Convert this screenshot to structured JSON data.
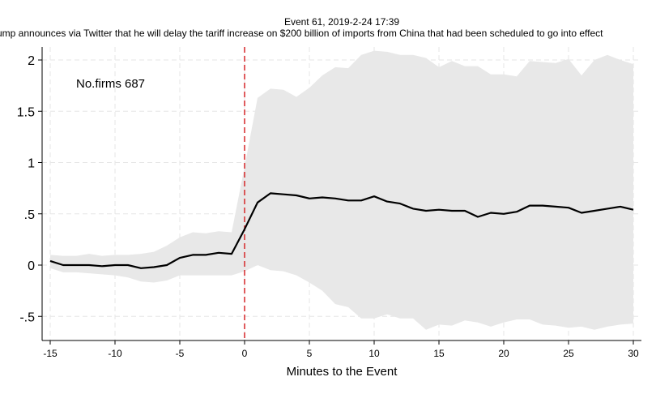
{
  "chart_data": {
    "type": "line",
    "title": "Event 61, 2019-2-24 17:39",
    "subtitle": "ump announces via Twitter that he will delay the tariff increase on $200 billion of imports from China that had been scheduled to go into effect",
    "xlabel": "Minutes to the Event",
    "ylabel": "",
    "annotation": "No.firms 687",
    "xlim": [
      -15,
      30
    ],
    "ylim": [
      -0.75,
      2.1
    ],
    "x_ticks": [
      -15,
      -10,
      -5,
      0,
      5,
      10,
      15,
      20,
      25,
      30
    ],
    "x_tick_labels": [
      "-15",
      "-10",
      "-5",
      "0",
      "5",
      "10",
      "15",
      "20",
      "25",
      "30"
    ],
    "y_ticks": [
      -0.5,
      0,
      0.5,
      1,
      1.5,
      2
    ],
    "y_tick_labels": [
      "-.5",
      "0",
      ".5",
      "1",
      "1.5",
      "2"
    ],
    "grid": true,
    "event_line_x": 0,
    "x": [
      -15,
      -14,
      -13,
      -12,
      -11,
      -10,
      -9,
      -8,
      -7,
      -6,
      -5,
      -4,
      -3,
      -2,
      -1,
      0,
      1,
      2,
      3,
      4,
      5,
      6,
      7,
      8,
      9,
      10,
      11,
      12,
      13,
      14,
      15,
      16,
      17,
      18,
      19,
      20,
      21,
      22,
      23,
      24,
      25,
      26,
      27,
      28,
      29,
      30
    ],
    "series": [
      {
        "values": [
          0.04,
          0.0,
          0.0,
          0.0,
          -0.01,
          0.0,
          0.0,
          -0.03,
          -0.02,
          0.0,
          0.07,
          0.1,
          0.1,
          0.12,
          0.11,
          0.35,
          0.61,
          0.7,
          0.69,
          0.68,
          0.65,
          0.66,
          0.65,
          0.63,
          0.63,
          0.67,
          0.62,
          0.6,
          0.55,
          0.53,
          0.54,
          0.53,
          0.53,
          0.47,
          0.51,
          0.5,
          0.52,
          0.58,
          0.58,
          0.57,
          0.56,
          0.51,
          0.53,
          0.55,
          0.57,
          0.54
        ]
      }
    ],
    "band": {
      "upper": [
        0.1,
        0.09,
        0.09,
        0.11,
        0.09,
        0.1,
        0.1,
        0.11,
        0.13,
        0.19,
        0.27,
        0.32,
        0.31,
        0.33,
        0.32,
        0.96,
        1.63,
        1.72,
        1.71,
        1.64,
        1.73,
        1.85,
        1.93,
        1.92,
        2.05,
        2.09,
        2.08,
        2.05,
        2.05,
        2.02,
        1.93,
        1.99,
        1.94,
        1.94,
        1.86,
        1.86,
        1.84,
        1.99,
        1.98,
        1.97,
        2.01,
        1.85,
        2.0,
        2.05,
        2.0,
        1.96
      ],
      "lower": [
        -0.03,
        -0.07,
        -0.07,
        -0.08,
        -0.09,
        -0.1,
        -0.12,
        -0.16,
        -0.17,
        -0.15,
        -0.1,
        -0.1,
        -0.1,
        -0.1,
        -0.1,
        -0.06,
        0.0,
        -0.05,
        -0.06,
        -0.1,
        -0.17,
        -0.25,
        -0.38,
        -0.41,
        -0.52,
        -0.52,
        -0.48,
        -0.52,
        -0.52,
        -0.63,
        -0.58,
        -0.59,
        -0.54,
        -0.56,
        -0.6,
        -0.56,
        -0.53,
        -0.53,
        -0.58,
        -0.59,
        -0.61,
        -0.6,
        -0.63,
        -0.6,
        -0.58,
        -0.57
      ]
    },
    "colors": {
      "line": "#000000",
      "band": "#e8e8e8",
      "event_line": "#d62728",
      "grid": "#e6e6e6"
    }
  }
}
